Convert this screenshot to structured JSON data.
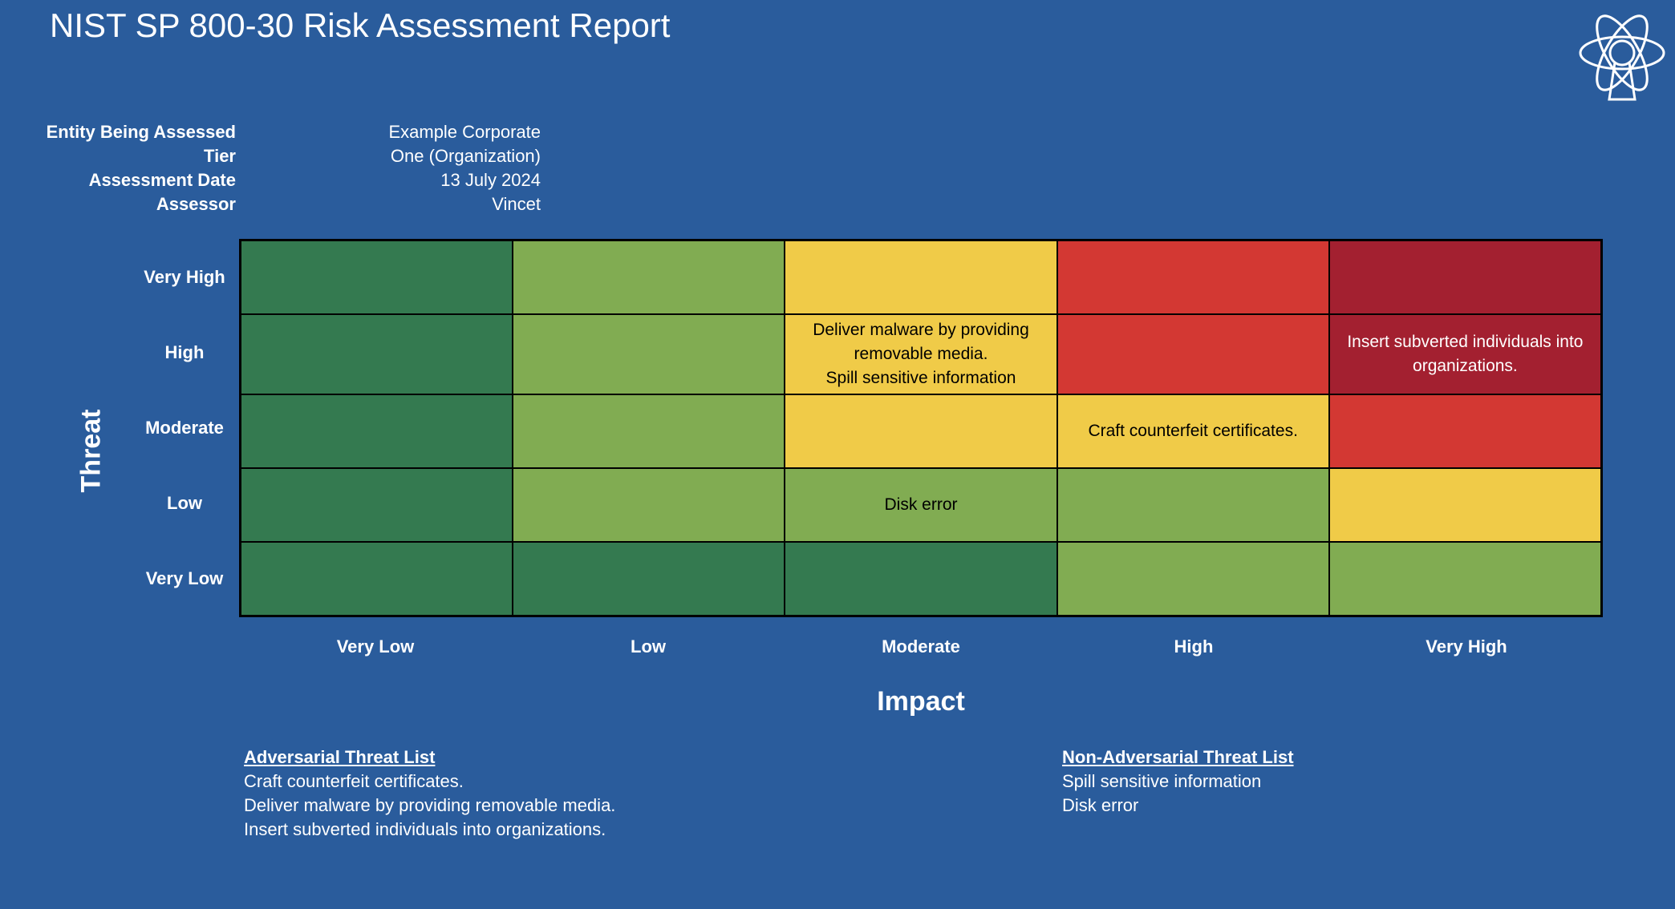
{
  "header": {
    "title": "NIST SP 800-30 Risk Assessment Report"
  },
  "logo": {
    "icon": "atom-keyhole-icon"
  },
  "assessment": {
    "fields": [
      {
        "label": "Entity Being Assessed",
        "value": "Example Corporate"
      },
      {
        "label": "Tier",
        "value": "One (Organization)"
      },
      {
        "label": "Assessment Date",
        "value": "13 July 2024"
      },
      {
        "label": "Assessor",
        "value": "Vincet"
      }
    ]
  },
  "matrix": {
    "threat_axis_label": "Threat",
    "impact_axis_label": "Impact",
    "rows": [
      "Very High",
      "High",
      "Moderate",
      "Low",
      "Very Low"
    ],
    "columns": [
      "Very Low",
      "Low",
      "Moderate",
      "High",
      "Very High"
    ],
    "risk_colors": {
      "very-low": "#347a50",
      "low": "#81ac52",
      "moderate": "#f0cb48",
      "high": "#d33833",
      "very-high": "#a32030"
    },
    "cells": [
      [
        {
          "level": "very-low",
          "text": ""
        },
        {
          "level": "low",
          "text": ""
        },
        {
          "level": "moderate",
          "text": ""
        },
        {
          "level": "high",
          "text": ""
        },
        {
          "level": "very-high",
          "text": ""
        }
      ],
      [
        {
          "level": "very-low",
          "text": ""
        },
        {
          "level": "low",
          "text": ""
        },
        {
          "level": "moderate",
          "text": "Deliver malware by providing\nremovable media.\nSpill sensitive information"
        },
        {
          "level": "high",
          "text": ""
        },
        {
          "level": "very-high",
          "text": "Insert subverted individuals into\norganizations."
        }
      ],
      [
        {
          "level": "very-low",
          "text": ""
        },
        {
          "level": "low",
          "text": ""
        },
        {
          "level": "moderate",
          "text": ""
        },
        {
          "level": "moderate",
          "text": "Craft counterfeit certificates."
        },
        {
          "level": "high",
          "text": ""
        }
      ],
      [
        {
          "level": "very-low",
          "text": ""
        },
        {
          "level": "low",
          "text": ""
        },
        {
          "level": "low",
          "text": "Disk error"
        },
        {
          "level": "low",
          "text": ""
        },
        {
          "level": "moderate",
          "text": ""
        }
      ],
      [
        {
          "level": "very-low",
          "text": ""
        },
        {
          "level": "very-low",
          "text": ""
        },
        {
          "level": "very-low",
          "text": ""
        },
        {
          "level": "low",
          "text": ""
        },
        {
          "level": "low",
          "text": ""
        }
      ]
    ]
  },
  "adversarial": {
    "title": "Adversarial Threat List",
    "items": [
      "Craft counterfeit certificates.",
      "Deliver malware by providing removable media.",
      "Insert subverted individuals into organizations."
    ]
  },
  "non_adversarial": {
    "title": "Non-Adversarial Threat List",
    "items": [
      "Spill sensitive information",
      "Disk error"
    ]
  }
}
